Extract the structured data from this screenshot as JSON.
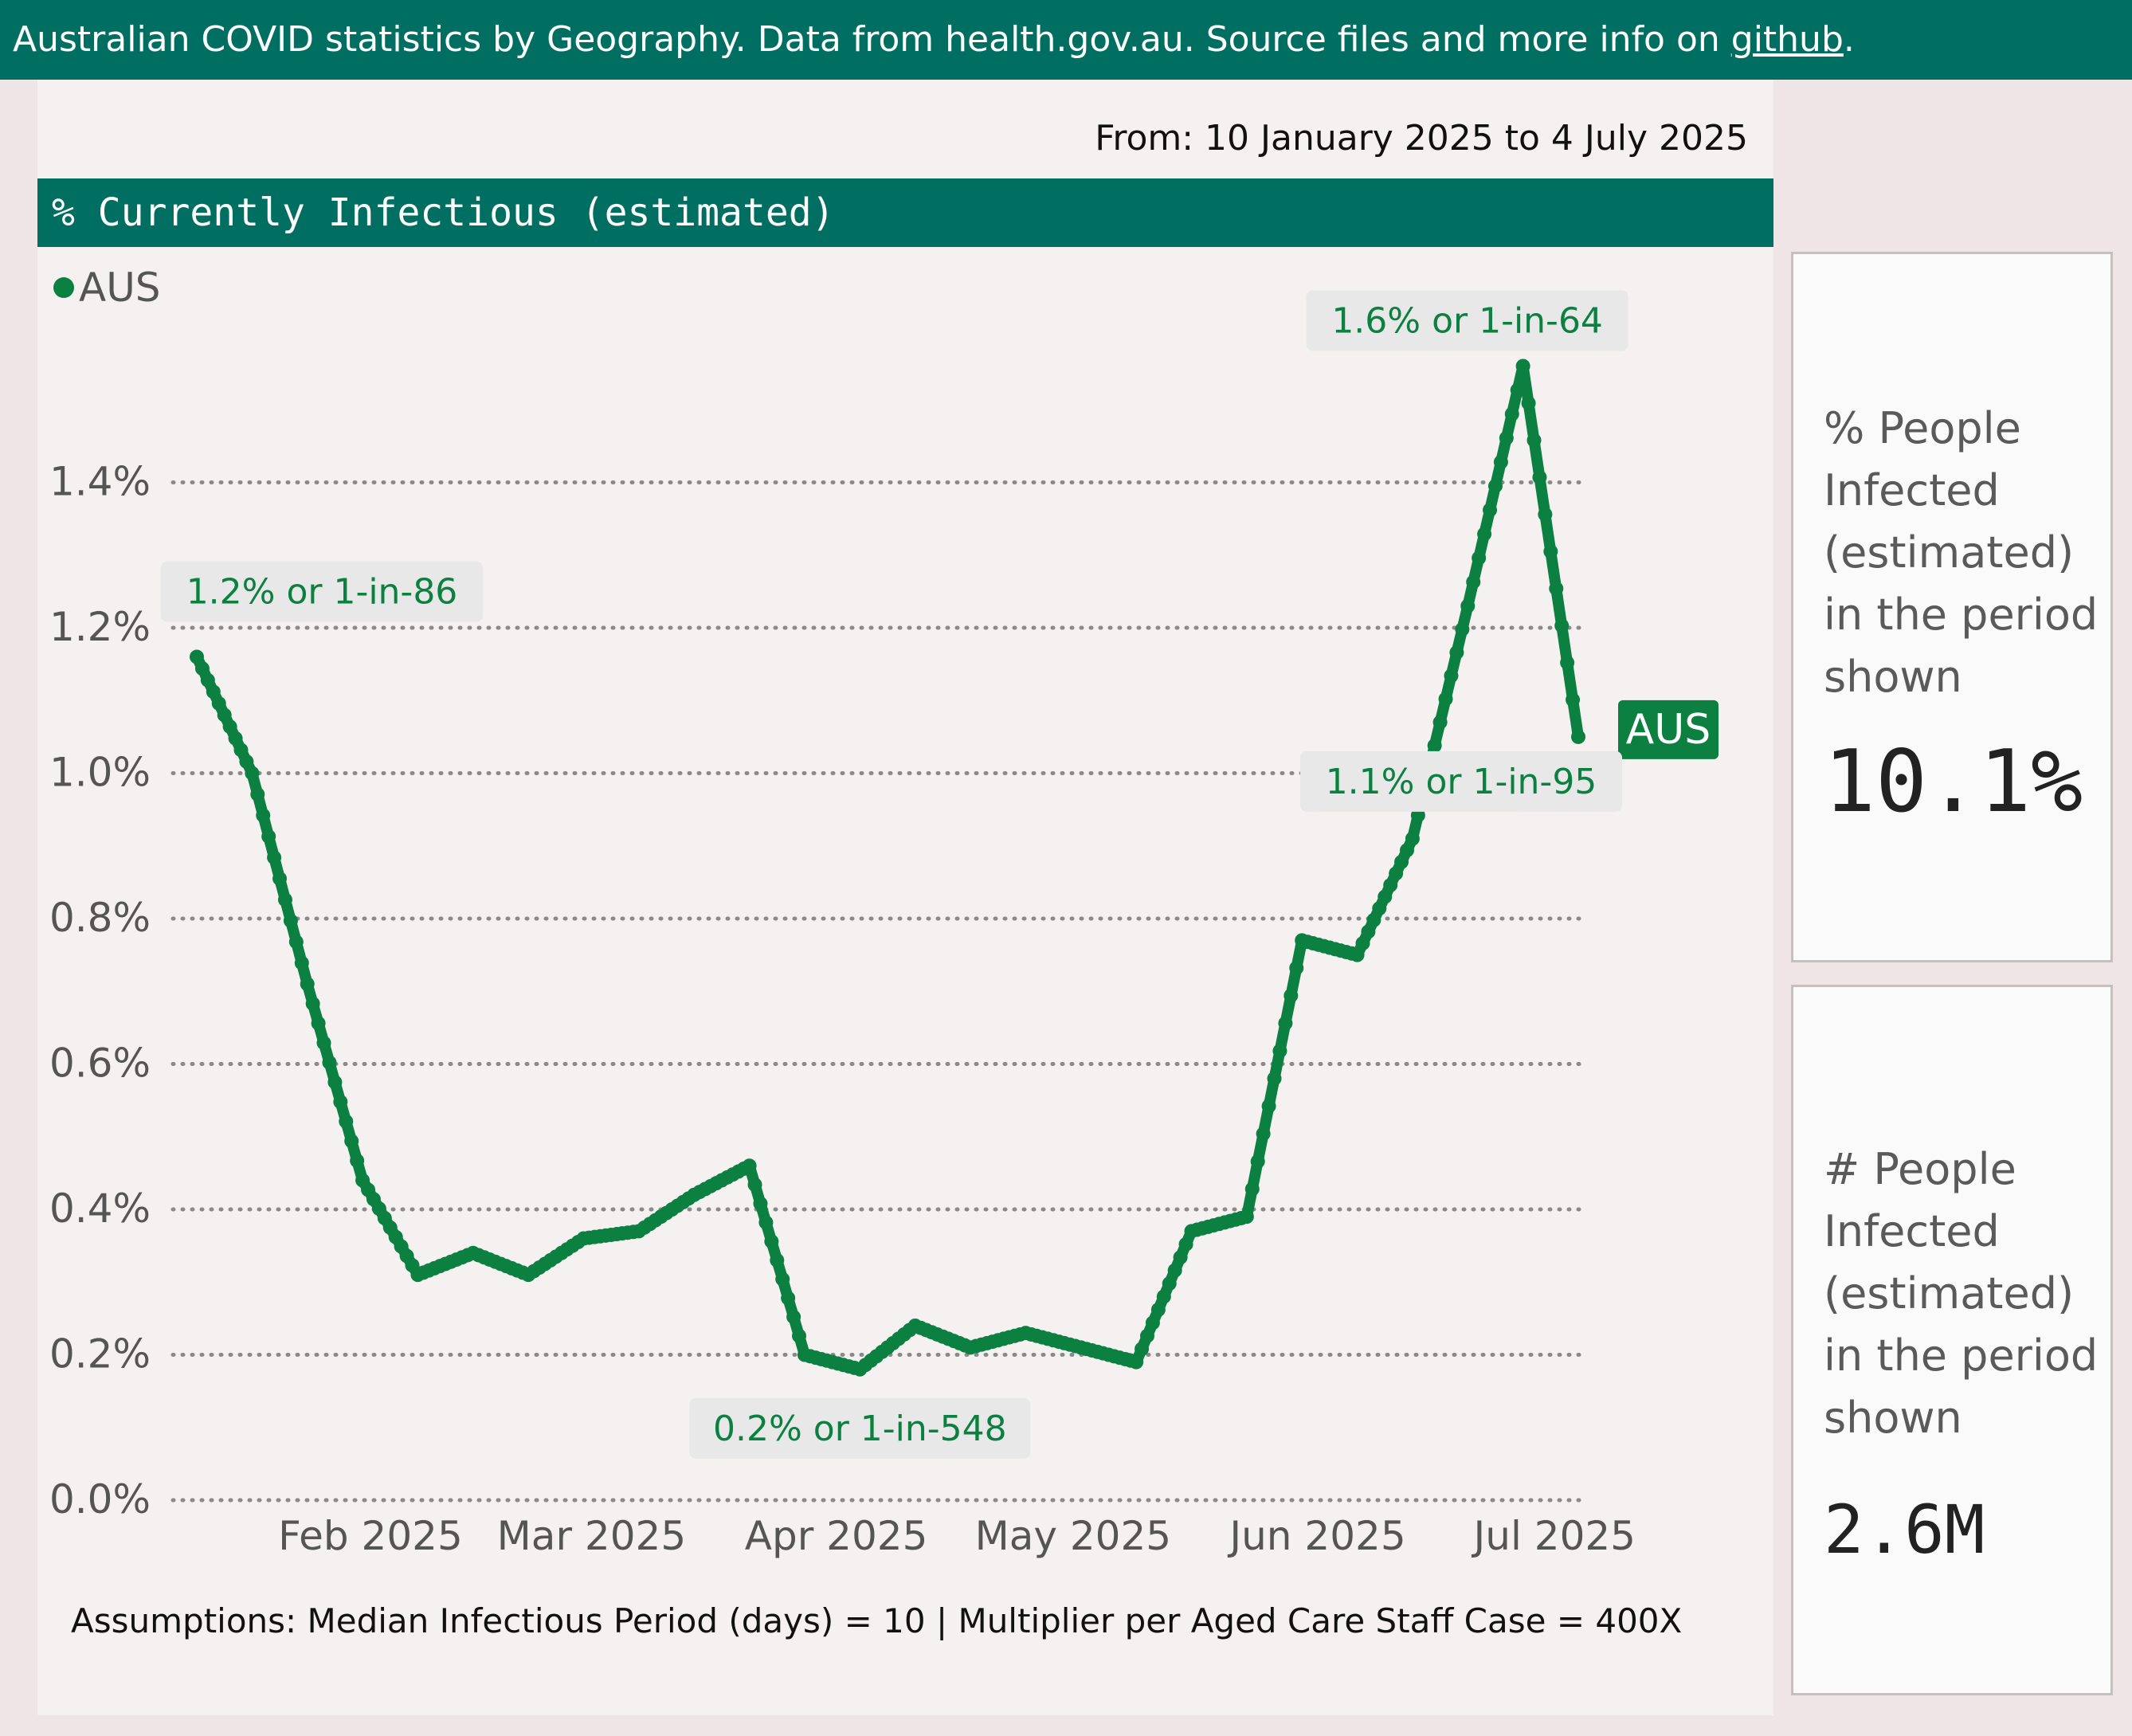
{
  "header": {
    "text": "Australian COVID statistics by Geography. Data from health.gov.au. Source files and more info on ",
    "link_label": "github",
    "suffix": "."
  },
  "period": {
    "label": "From: 10 January 2025 to 4 July 2025"
  },
  "kpis": [
    {
      "label": "% People\nInfected\n(estimated)\nin the period\nshown",
      "value": "10.1%"
    },
    {
      "label": "# People\nInfected\n(estimated)\nin the period\nshown",
      "value": "2.6M"
    }
  ],
  "footnote": "Assumptions: Median Infectious Period (days) = 10 | Multiplier per Aged Care Staff Case = 400X",
  "colors": {
    "header_bg": "#006f62",
    "series": "#0b8040",
    "gridline": "#8a8a8a",
    "annotation_bg": "#e8e8e8"
  },
  "chart_data": {
    "type": "line",
    "title": "% Currently Infectious (estimated)",
    "legend": {
      "position": "top-left",
      "entries": [
        "AUS"
      ]
    },
    "xlabel": "",
    "ylabel": "",
    "x_ticks": [
      "Feb 2025",
      "Mar 2025",
      "Apr 2025",
      "May 2025",
      "Jun 2025",
      "Jul 2025"
    ],
    "x_tick_dates": [
      "2025-02-01",
      "2025-03-01",
      "2025-04-01",
      "2025-05-01",
      "2025-06-01",
      "2025-07-01"
    ],
    "y_ticks": [
      "0.0%",
      "0.2%",
      "0.4%",
      "0.6%",
      "0.8%",
      "1.0%",
      "1.2%",
      "1.4%"
    ],
    "ylim": [
      0,
      1.6
    ],
    "y_grid": true,
    "x_range": [
      "2025-01-10",
      "2025-07-04"
    ],
    "series": [
      {
        "name": "AUS",
        "end_label": "AUS",
        "points": [
          [
            "2025-01-10",
            1.16
          ],
          [
            "2025-01-17",
            1.0
          ],
          [
            "2025-01-24",
            0.71
          ],
          [
            "2025-01-31",
            0.44
          ],
          [
            "2025-02-07",
            0.31
          ],
          [
            "2025-02-14",
            0.34
          ],
          [
            "2025-02-21",
            0.31
          ],
          [
            "2025-02-28",
            0.36
          ],
          [
            "2025-03-07",
            0.37
          ],
          [
            "2025-03-14",
            0.42
          ],
          [
            "2025-03-21",
            0.46
          ],
          [
            "2025-03-28",
            0.2
          ],
          [
            "2025-04-04",
            0.18
          ],
          [
            "2025-04-11",
            0.24
          ],
          [
            "2025-04-18",
            0.21
          ],
          [
            "2025-04-25",
            0.23
          ],
          [
            "2025-05-02",
            0.21
          ],
          [
            "2025-05-09",
            0.19
          ],
          [
            "2025-05-16",
            0.37
          ],
          [
            "2025-05-23",
            0.39
          ],
          [
            "2025-05-30",
            0.77
          ],
          [
            "2025-06-06",
            0.75
          ],
          [
            "2025-06-13",
            0.91
          ],
          [
            "2025-06-20",
            1.23
          ],
          [
            "2025-06-27",
            1.56
          ],
          [
            "2025-07-04",
            1.05
          ]
        ]
      }
    ],
    "annotations": [
      {
        "label": "1.2% or 1-in-86",
        "date": "2025-01-10",
        "value": 1.16
      },
      {
        "label": "0.2% or 1-in-548",
        "date": "2025-04-04",
        "value": 0.18
      },
      {
        "label": "1.6% or 1-in-64",
        "date": "2025-06-27",
        "value": 1.56
      },
      {
        "label": "1.1% or 1-in-95",
        "date": "2025-07-04",
        "value": 1.05
      }
    ]
  }
}
